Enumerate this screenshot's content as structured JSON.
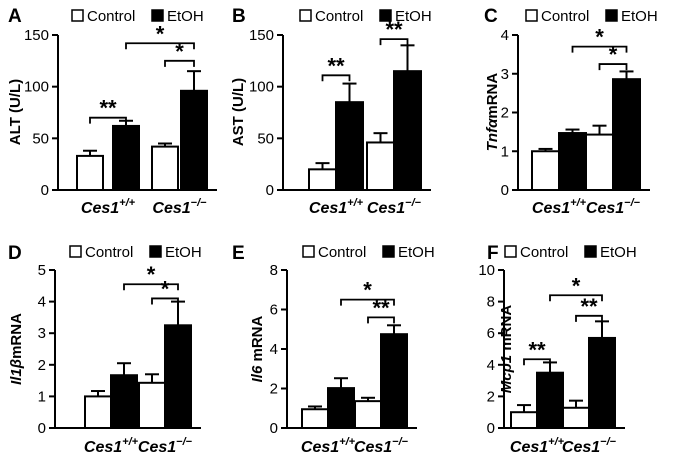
{
  "figure": {
    "colors": {
      "control": "#ffffff",
      "etoh": "#000000",
      "axis": "#000000"
    },
    "panels": [
      {
        "letter": "A",
        "legend": [
          "Control",
          "EtOH"
        ],
        "ylabel_parts": [
          {
            "text": "ALT (U/L)",
            "italic": false
          }
        ],
        "chart_data": {
          "type": "bar",
          "title": "",
          "ylabel": "ALT (U/L)",
          "categories": [
            {
              "base": "Ces1",
              "sup": "+/+"
            },
            {
              "base": "Ces1",
              "sup": "−/−"
            }
          ],
          "series": [
            {
              "name": "Control",
              "values": [
                33,
                42
              ],
              "errors": [
                5,
                3
              ]
            },
            {
              "name": "EtOH",
              "values": [
                62,
                96
              ],
              "errors": [
                5,
                19
              ]
            }
          ],
          "ylim": [
            0,
            150
          ],
          "ticks": [
            0,
            50,
            100,
            150
          ],
          "tick_labels": [
            "0",
            "50",
            "100",
            "150"
          ],
          "significance": [
            {
              "label": "**",
              "between": [
                [
                  0,
                  0
                ],
                [
                  0,
                  1
                ]
              ],
              "at": 70
            },
            {
              "label": "*",
              "between": [
                [
                  1,
                  0
                ],
                [
                  1,
                  1
                ]
              ],
              "at": 125
            },
            {
              "label": "*",
              "between": [
                [
                  0,
                  1
                ],
                [
                  1,
                  1
                ]
              ],
              "at": 142
            }
          ]
        }
      },
      {
        "letter": "B",
        "legend": [
          "Control",
          "EtOH"
        ],
        "ylabel_parts": [
          {
            "text": "AST (U/L)",
            "italic": false
          }
        ],
        "chart_data": {
          "type": "bar",
          "title": "",
          "ylabel": "AST (U/L)",
          "categories": [
            {
              "base": "Ces1",
              "sup": "+/+"
            },
            {
              "base": "Ces1",
              "sup": "−/−"
            }
          ],
          "series": [
            {
              "name": "Control",
              "values": [
                20,
                46
              ],
              "errors": [
                6,
                9
              ]
            },
            {
              "name": "EtOH",
              "values": [
                85,
                115
              ],
              "errors": [
                18,
                25
              ]
            }
          ],
          "ylim": [
            0,
            150
          ],
          "ticks": [
            0,
            50,
            100,
            150
          ],
          "tick_labels": [
            "0",
            "50",
            "100",
            "150"
          ],
          "significance": [
            {
              "label": "**",
              "between": [
                [
                  0,
                  0
                ],
                [
                  0,
                  1
                ]
              ],
              "at": 111
            },
            {
              "label": "**",
              "between": [
                [
                  1,
                  0
                ],
                [
                  1,
                  1
                ]
              ],
              "at": 146
            }
          ]
        }
      },
      {
        "letter": "C",
        "legend": [
          "Control",
          "EtOH"
        ],
        "ylabel_parts": [
          {
            "text": "Tnfα",
            "italic": true
          },
          {
            "text": "mRNA",
            "italic": false
          }
        ],
        "chart_data": {
          "type": "bar",
          "title": "",
          "ylabel": "Tnfα mRNA",
          "categories": [
            {
              "base": "Ces1",
              "sup": "+/+"
            },
            {
              "base": "Ces1",
              "sup": "−/−"
            }
          ],
          "series": [
            {
              "name": "Control",
              "values": [
                1.0,
                1.43
              ],
              "errors": [
                0.06,
                0.23
              ]
            },
            {
              "name": "EtOH",
              "values": [
                1.47,
                2.86
              ],
              "errors": [
                0.09,
                0.2
              ]
            }
          ],
          "ylim": [
            0,
            4
          ],
          "ticks": [
            0,
            1,
            2,
            3,
            4
          ],
          "tick_labels": [
            "0",
            "1",
            "2",
            "3",
            "4"
          ],
          "significance": [
            {
              "label": "*",
              "between": [
                [
                  1,
                  0
                ],
                [
                  1,
                  1
                ]
              ],
              "at": 3.25
            },
            {
              "label": "*",
              "between": [
                [
                  0,
                  1
                ],
                [
                  1,
                  1
                ]
              ],
              "at": 3.7
            }
          ]
        }
      },
      {
        "letter": "D",
        "legend": [
          "Control",
          "EtOH"
        ],
        "ylabel_parts": [
          {
            "text": "Il1β",
            "italic": true
          },
          {
            "text": "mRNA",
            "italic": false
          }
        ],
        "chart_data": {
          "type": "bar",
          "title": "",
          "ylabel": "Il1β mRNA",
          "categories": [
            {
              "base": "Ces1",
              "sup": "+/+"
            },
            {
              "base": "Ces1",
              "sup": "−/−"
            }
          ],
          "series": [
            {
              "name": "Control",
              "values": [
                1.0,
                1.43
              ],
              "errors": [
                0.17,
                0.27
              ]
            },
            {
              "name": "EtOH",
              "values": [
                1.67,
                3.25
              ],
              "errors": [
                0.38,
                0.75
              ]
            }
          ],
          "ylim": [
            0,
            5
          ],
          "ticks": [
            0,
            1,
            2,
            3,
            4,
            5
          ],
          "tick_labels": [
            "0",
            "1",
            "2",
            "3",
            "4",
            "5"
          ],
          "significance": [
            {
              "label": "*",
              "between": [
                [
                  1,
                  0
                ],
                [
                  1,
                  1
                ]
              ],
              "at": 4.1
            },
            {
              "label": "*",
              "between": [
                [
                  0,
                  1
                ],
                [
                  1,
                  1
                ]
              ],
              "at": 4.55
            }
          ]
        }
      },
      {
        "letter": "E",
        "legend": [
          "Control",
          "EtOH"
        ],
        "ylabel_parts": [
          {
            "text": "Il6",
            "italic": true
          },
          {
            "text": " mRNA",
            "italic": false
          }
        ],
        "chart_data": {
          "type": "bar",
          "title": "",
          "ylabel": "Il6 mRNA",
          "categories": [
            {
              "base": "Ces1",
              "sup": "+/+"
            },
            {
              "base": "Ces1",
              "sup": "−/−"
            }
          ],
          "series": [
            {
              "name": "Control",
              "values": [
                0.95,
                1.36
              ],
              "errors": [
                0.14,
                0.17
              ]
            },
            {
              "name": "EtOH",
              "values": [
                2.02,
                4.75
              ],
              "errors": [
                0.5,
                0.45
              ]
            }
          ],
          "ylim": [
            0,
            8
          ],
          "ticks": [
            0,
            2,
            4,
            6,
            8
          ],
          "tick_labels": [
            "0",
            "2",
            "4",
            "6",
            "8"
          ],
          "significance": [
            {
              "label": "**",
              "between": [
                [
                  1,
                  0
                ],
                [
                  1,
                  1
                ]
              ],
              "at": 5.6
            },
            {
              "label": "*",
              "between": [
                [
                  0,
                  1
                ],
                [
                  1,
                  1
                ]
              ],
              "at": 6.5
            }
          ]
        }
      },
      {
        "letter": "F",
        "legend": [
          "Control",
          "EtOH"
        ],
        "ylabel_parts": [
          {
            "text": "Mcp1",
            "italic": true
          },
          {
            "text": " mRNA",
            "italic": false
          }
        ],
        "chart_data": {
          "type": "bar",
          "title": "",
          "ylabel": "Mcp1 mRNA",
          "categories": [
            {
              "base": "Ces1",
              "sup": "+/+"
            },
            {
              "base": "Ces1",
              "sup": "−/−"
            }
          ],
          "series": [
            {
              "name": "Control",
              "values": [
                1.0,
                1.28
              ],
              "errors": [
                0.45,
                0.45
              ]
            },
            {
              "name": "EtOH",
              "values": [
                3.5,
                5.7
              ],
              "errors": [
                0.65,
                1.05
              ]
            }
          ],
          "ylim": [
            0,
            10
          ],
          "ticks": [
            0,
            2,
            4,
            6,
            8,
            10
          ],
          "tick_labels": [
            "0",
            "2",
            "4",
            "6",
            "8",
            "10"
          ],
          "significance": [
            {
              "label": "**",
              "between": [
                [
                  0,
                  0
                ],
                [
                  0,
                  1
                ]
              ],
              "at": 4.35
            },
            {
              "label": "**",
              "between": [
                [
                  1,
                  0
                ],
                [
                  1,
                  1
                ]
              ],
              "at": 7.1
            },
            {
              "label": "*",
              "between": [
                [
                  0,
                  1
                ],
                [
                  1,
                  1
                ]
              ],
              "at": 8.4
            }
          ]
        }
      }
    ]
  }
}
